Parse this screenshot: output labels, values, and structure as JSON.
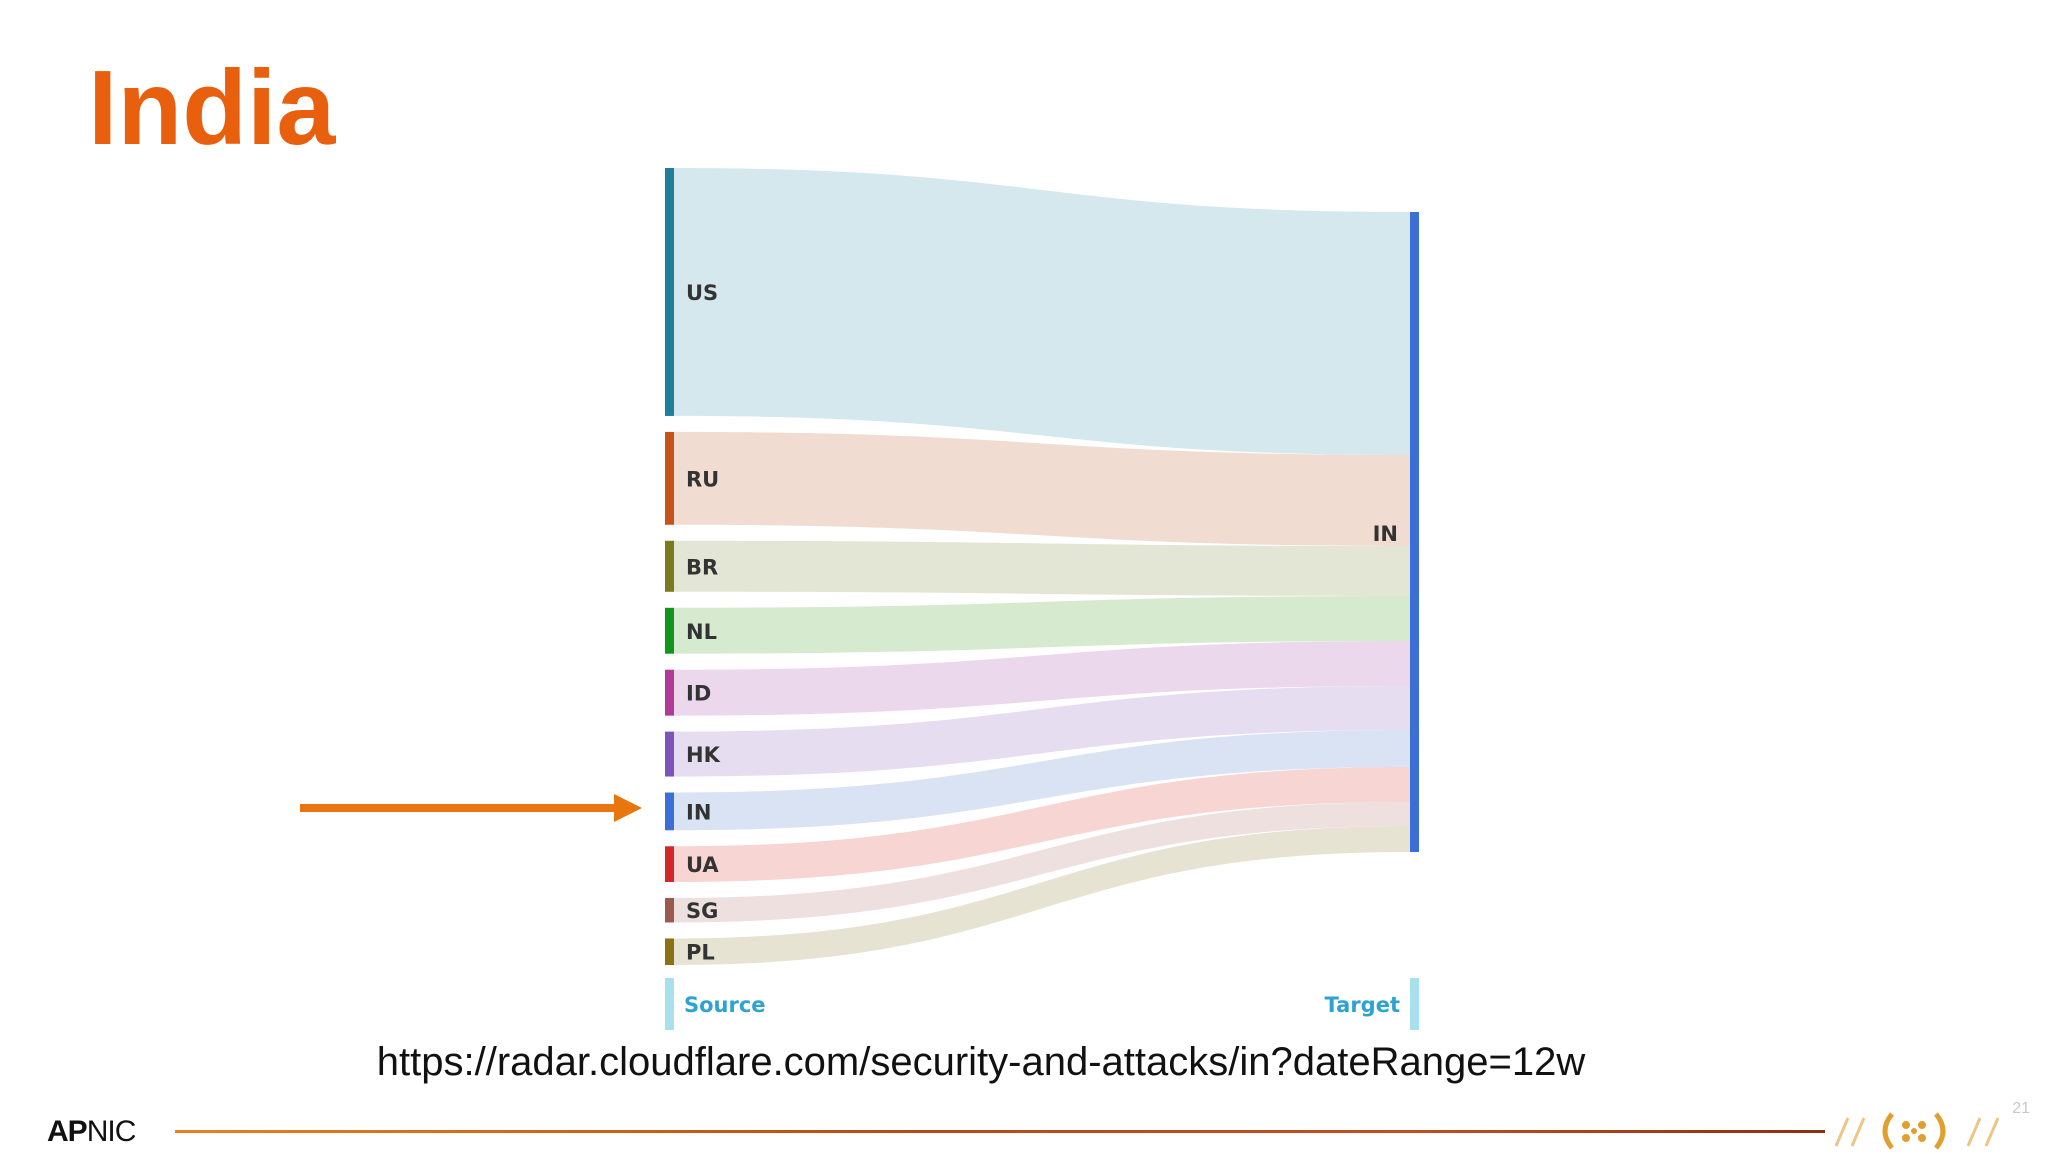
{
  "slide": {
    "title": "India",
    "url": "https://radar.cloudflare.com/security-and-attacks/in?dateRange=12w",
    "logo_bold": "AP",
    "logo_rest": "NIC",
    "page_number": "21"
  },
  "chart_data": {
    "type": "sankey",
    "source_label": "Source",
    "target_label": "Target",
    "target": {
      "name": "IN",
      "color": "#3b6fd6"
    },
    "nodes": [
      {
        "name": "US",
        "value": 24.3,
        "node_color": "#1f7f98",
        "flow_color": "#d5e8ee"
      },
      {
        "name": "RU",
        "value": 9.1,
        "node_color": "#c4541a",
        "flow_color": "#f1dcd2"
      },
      {
        "name": "BR",
        "value": 5.0,
        "node_color": "#7a7a1e",
        "flow_color": "#e4e6d5"
      },
      {
        "name": "NL",
        "value": 4.5,
        "node_color": "#11951f",
        "flow_color": "#d6eacf"
      },
      {
        "name": "ID",
        "value": 4.5,
        "node_color": "#b03a94",
        "flow_color": "#ecd8ec"
      },
      {
        "name": "HK",
        "value": 4.4,
        "node_color": "#7c55b8",
        "flow_color": "#e6def0"
      },
      {
        "name": "IN",
        "value": 3.7,
        "node_color": "#3b6fd6",
        "flow_color": "#d9e3f3"
      },
      {
        "name": "UA",
        "value": 3.5,
        "node_color": "#d42828",
        "flow_color": "#f6d5d3"
      },
      {
        "name": "SG",
        "value": 2.4,
        "node_color": "#9a5a50",
        "flow_color": "#ede0de"
      },
      {
        "name": "PL",
        "value": 2.6,
        "node_color": "#8a7214",
        "flow_color": "#e6e3d2"
      }
    ]
  },
  "colors": {
    "accent": "#e8600e",
    "axis_label": "#2ea3cf",
    "axis_marker": "#a9e0ee"
  },
  "icons": {
    "arrow": "arrow-right-icon",
    "brand": "ipv6-brand-icon"
  }
}
